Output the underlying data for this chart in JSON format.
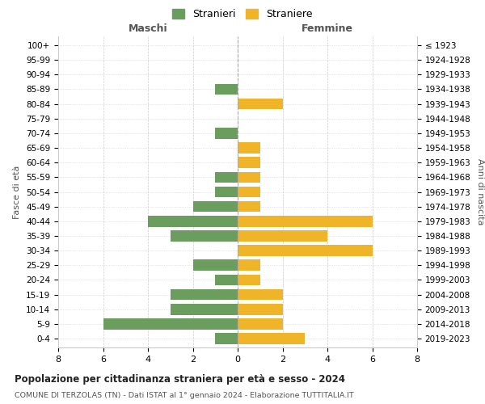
{
  "age_groups": [
    "100+",
    "95-99",
    "90-94",
    "85-89",
    "80-84",
    "75-79",
    "70-74",
    "65-69",
    "60-64",
    "55-59",
    "50-54",
    "45-49",
    "40-44",
    "35-39",
    "30-34",
    "25-29",
    "20-24",
    "15-19",
    "10-14",
    "5-9",
    "0-4"
  ],
  "birth_years": [
    "≤ 1923",
    "1924-1928",
    "1929-1933",
    "1934-1938",
    "1939-1943",
    "1944-1948",
    "1949-1953",
    "1954-1958",
    "1959-1963",
    "1964-1968",
    "1969-1973",
    "1974-1978",
    "1979-1983",
    "1984-1988",
    "1989-1993",
    "1994-1998",
    "1999-2003",
    "2004-2008",
    "2009-2013",
    "2014-2018",
    "2019-2023"
  ],
  "maschi": [
    0,
    0,
    0,
    1,
    0,
    0,
    1,
    0,
    0,
    1,
    1,
    2,
    4,
    3,
    0,
    2,
    1,
    3,
    3,
    6,
    1
  ],
  "femmine": [
    0,
    0,
    0,
    0,
    2,
    0,
    0,
    1,
    1,
    1,
    1,
    1,
    6,
    4,
    6,
    1,
    1,
    2,
    2,
    2,
    3
  ],
  "maschi_color": "#6b9e5e",
  "femmine_color": "#f0b429",
  "title": "Popolazione per cittadinanza straniera per età e sesso - 2024",
  "subtitle": "COMUNE DI TERZOLAS (TN) - Dati ISTAT al 1° gennaio 2024 - Elaborazione TUTTITALIA.IT",
  "xlabel_left": "Maschi",
  "xlabel_right": "Femmine",
  "ylabel_left": "Fasce di età",
  "ylabel_right": "Anni di nascita",
  "legend_stranieri": "Stranieri",
  "legend_straniere": "Straniere",
  "xlim": 8,
  "background_color": "#ffffff",
  "grid_color": "#cccccc"
}
